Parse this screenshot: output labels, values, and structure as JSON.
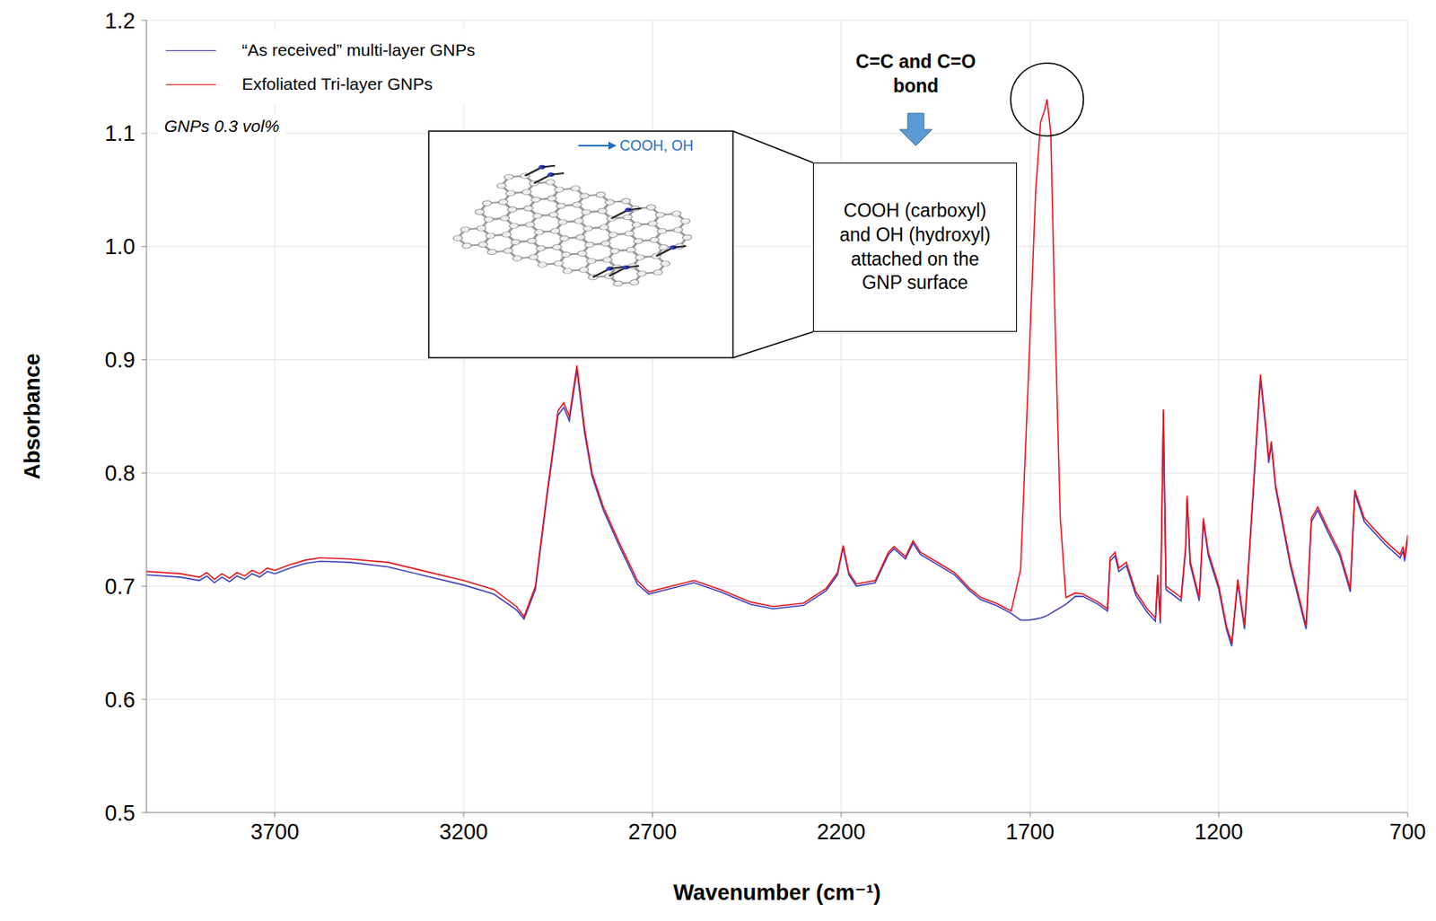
{
  "chart_data": {
    "type": "line",
    "x_label": "Wavenumber (cm⁻¹)",
    "y_label": "Absorbance",
    "x": [
      4040,
      3950,
      3900,
      3880,
      3860,
      3840,
      3820,
      3800,
      3780,
      3760,
      3740,
      3720,
      3700,
      3660,
      3620,
      3580,
      3500,
      3400,
      3300,
      3200,
      3120,
      3060,
      3040,
      3010,
      2980,
      2950,
      2935,
      2920,
      2900,
      2880,
      2860,
      2830,
      2790,
      2740,
      2710,
      2650,
      2590,
      2520,
      2440,
      2380,
      2300,
      2240,
      2210,
      2195,
      2180,
      2160,
      2110,
      2075,
      2060,
      2030,
      2010,
      1990,
      1950,
      1900,
      1860,
      1830,
      1790,
      1750,
      1725,
      1705,
      1685,
      1672,
      1662,
      1655,
      1645,
      1635,
      1620,
      1605,
      1580,
      1560,
      1520,
      1495,
      1488,
      1475,
      1465,
      1445,
      1420,
      1390,
      1368,
      1362,
      1355,
      1347,
      1340,
      1300,
      1288,
      1284,
      1276,
      1252,
      1241,
      1228,
      1200,
      1180,
      1166,
      1150,
      1132,
      1110,
      1090,
      1075,
      1068,
      1061,
      1050,
      1010,
      969,
      955,
      938,
      910,
      880,
      852,
      840,
      815,
      760,
      720,
      712,
      708,
      700
    ],
    "series": [
      {
        "name": "“As received” multi-layer GNPs",
        "color": "#3f3fbf",
        "values": [
          0.71,
          0.708,
          0.705,
          0.709,
          0.703,
          0.708,
          0.704,
          0.709,
          0.706,
          0.711,
          0.708,
          0.713,
          0.711,
          0.716,
          0.72,
          0.722,
          0.721,
          0.717,
          0.709,
          0.701,
          0.693,
          0.679,
          0.671,
          0.697,
          0.777,
          0.851,
          0.858,
          0.846,
          0.891,
          0.836,
          0.797,
          0.767,
          0.737,
          0.702,
          0.693,
          0.698,
          0.703,
          0.695,
          0.684,
          0.68,
          0.683,
          0.696,
          0.71,
          0.734,
          0.71,
          0.7,
          0.703,
          0.728,
          0.733,
          0.724,
          0.738,
          0.728,
          0.72,
          0.71,
          0.696,
          0.688,
          0.683,
          0.676,
          0.67,
          0.67,
          0.671,
          0.672,
          0.673,
          0.674,
          0.676,
          0.678,
          0.681,
          0.684,
          0.691,
          0.691,
          0.684,
          0.678,
          0.722,
          0.727,
          0.713,
          0.718,
          0.692,
          0.677,
          0.669,
          0.707,
          0.667,
          0.853,
          0.697,
          0.687,
          0.732,
          0.777,
          0.719,
          0.687,
          0.757,
          0.727,
          0.697,
          0.662,
          0.647,
          0.703,
          0.662,
          0.776,
          0.883,
          0.836,
          0.809,
          0.825,
          0.787,
          0.717,
          0.662,
          0.757,
          0.767,
          0.747,
          0.727,
          0.695,
          0.782,
          0.757,
          0.737,
          0.725,
          0.731,
          0.722,
          0.742
        ]
      },
      {
        "name": "Exfoliated Tri-layer GNPs",
        "color": "#e8141c",
        "values": [
          0.713,
          0.711,
          0.708,
          0.712,
          0.706,
          0.711,
          0.707,
          0.712,
          0.709,
          0.714,
          0.711,
          0.716,
          0.714,
          0.719,
          0.723,
          0.725,
          0.724,
          0.721,
          0.713,
          0.705,
          0.697,
          0.682,
          0.673,
          0.7,
          0.78,
          0.855,
          0.862,
          0.85,
          0.895,
          0.84,
          0.8,
          0.77,
          0.74,
          0.705,
          0.695,
          0.7,
          0.705,
          0.697,
          0.686,
          0.682,
          0.685,
          0.698,
          0.712,
          0.736,
          0.712,
          0.702,
          0.705,
          0.73,
          0.735,
          0.726,
          0.74,
          0.73,
          0.722,
          0.712,
          0.698,
          0.69,
          0.685,
          0.678,
          0.715,
          0.88,
          1.05,
          1.11,
          1.12,
          1.13,
          1.1,
          0.95,
          0.76,
          0.69,
          0.694,
          0.693,
          0.686,
          0.68,
          0.725,
          0.73,
          0.716,
          0.721,
          0.695,
          0.68,
          0.672,
          0.71,
          0.67,
          0.856,
          0.7,
          0.69,
          0.735,
          0.78,
          0.722,
          0.69,
          0.76,
          0.73,
          0.7,
          0.665,
          0.65,
          0.706,
          0.665,
          0.78,
          0.887,
          0.84,
          0.812,
          0.828,
          0.79,
          0.72,
          0.665,
          0.76,
          0.77,
          0.75,
          0.73,
          0.698,
          0.785,
          0.76,
          0.74,
          0.728,
          0.735,
          0.725,
          0.745
        ]
      }
    ],
    "xlim": [
      4040,
      700
    ],
    "ylim": [
      0.5,
      1.2
    ],
    "xticks": [
      3700,
      3200,
      2700,
      2200,
      1700,
      1200,
      700
    ],
    "yticks": [
      0.5,
      0.6,
      0.7,
      0.8,
      0.9,
      {
        "value": 1,
        "label": "1.0"
      },
      1.1,
      1.2
    ],
    "grid": true,
    "legend": "top-left",
    "annotations": {
      "sample": "GNPs 0.3 vol%",
      "peak_label": "C=C and C=O bond",
      "peak_note": "COOH (carboxyl) and OH (hydroxyl) attached on the GNP surface",
      "inset_label": "COOH, OH"
    }
  }
}
